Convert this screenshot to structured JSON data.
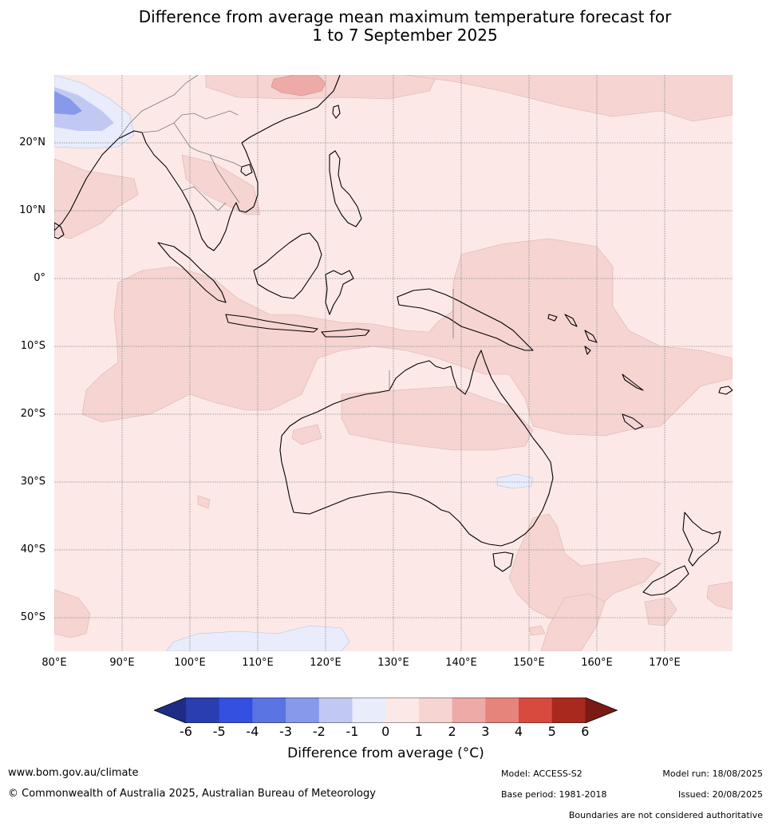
{
  "title": {
    "line1": "Difference from average mean maximum temperature forecast for",
    "line2": "1 to 7 September 2025"
  },
  "map": {
    "lat_labels": [
      "20°N",
      "10°N",
      "0°",
      "10°S",
      "20°S",
      "30°S",
      "40°S",
      "50°S"
    ],
    "lon_labels": [
      "80°E",
      "90°E",
      "100°E",
      "110°E",
      "120°E",
      "130°E",
      "140°E",
      "150°E",
      "160°E",
      "170°E"
    ]
  },
  "legend": {
    "ticks": [
      "-6",
      "-5",
      "-4",
      "-3",
      "-2",
      "-1",
      "0",
      "1",
      "2",
      "3",
      "4",
      "5",
      "6"
    ],
    "colors": [
      "#1f2c85",
      "#2a3eb1",
      "#3450e0",
      "#5b74e3",
      "#8799ea",
      "#c1c9f3",
      "#e8ecfb",
      "#fce9e7",
      "#f5d4d2",
      "#edaaa6",
      "#e6837b",
      "#d94a3e",
      "#a9291f",
      "#7a1a15"
    ],
    "label": "Difference from average (°C)"
  },
  "footer": {
    "website": "www.bom.gov.au/climate",
    "copyright": "© Commonwealth of Australia 2025, Australian Bureau of Meteorology",
    "model": "Model: ACCESS-S2",
    "base_period": "Base period: 1981-2018",
    "model_run": "Model run: 18/08/2025",
    "issued": "Issued: 20/08/2025",
    "disclaimer": "Boundaries are not considered authoritative"
  }
}
